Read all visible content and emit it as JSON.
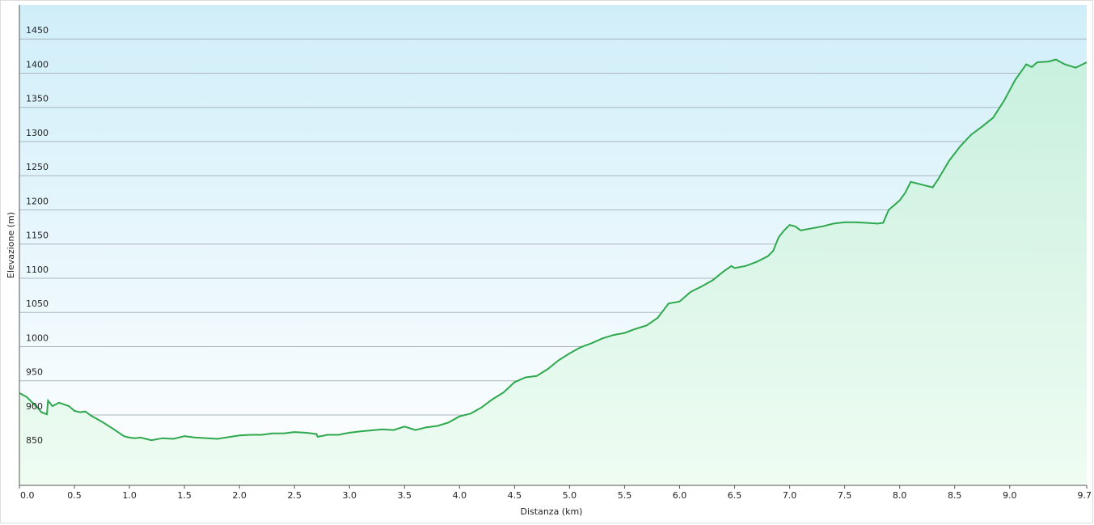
{
  "chart_data": {
    "type": "area",
    "x_label": "Distanza  (km)",
    "y_label": "Elevazione (m)",
    "color": "#2ea84d",
    "x": [
      0.0,
      0.07,
      0.13,
      0.17,
      0.2,
      0.25,
      0.26,
      0.3,
      0.36,
      0.45,
      0.5,
      0.55,
      0.6,
      0.65,
      0.75,
      0.85,
      0.95,
      1.0,
      1.05,
      1.1,
      1.2,
      1.3,
      1.4,
      1.5,
      1.6,
      1.8,
      2.0,
      2.1,
      2.2,
      2.3,
      2.4,
      2.5,
      2.6,
      2.7,
      2.71,
      2.8,
      2.9,
      3.0,
      3.1,
      3.3,
      3.4,
      3.5,
      3.6,
      3.7,
      3.8,
      3.9,
      4.0,
      4.1,
      4.2,
      4.3,
      4.4,
      4.5,
      4.6,
      4.7,
      4.8,
      4.9,
      5.0,
      5.1,
      5.2,
      5.3,
      5.4,
      5.5,
      5.6,
      5.7,
      5.8,
      5.9,
      6.0,
      6.1,
      6.2,
      6.3,
      6.4,
      6.47,
      6.5,
      6.6,
      6.7,
      6.8,
      6.85,
      6.9,
      6.95,
      7.0,
      7.05,
      7.1,
      7.2,
      7.3,
      7.4,
      7.5,
      7.6,
      7.7,
      7.8,
      7.85,
      7.9,
      8.0,
      8.05,
      8.1,
      8.2,
      8.3,
      8.35,
      8.45,
      8.55,
      8.65,
      8.75,
      8.85,
      8.95,
      9.05,
      9.15,
      9.2,
      9.25,
      9.35,
      9.42,
      9.5,
      9.6,
      9.7
    ],
    "values": [
      932,
      926,
      916,
      910,
      904,
      901,
      921,
      913,
      918,
      913,
      906,
      904,
      905,
      899,
      890,
      880,
      869,
      867,
      866,
      867,
      863,
      866,
      865,
      869,
      867,
      865,
      870,
      871,
      871,
      873,
      873,
      875,
      874,
      872,
      868,
      871,
      871,
      874,
      876,
      879,
      878,
      883,
      878,
      882,
      884,
      889,
      898,
      902,
      911,
      923,
      933,
      948,
      955,
      957,
      967,
      980,
      990,
      999,
      1005,
      1012,
      1017,
      1020,
      1026,
      1031,
      1042,
      1063,
      1066,
      1080,
      1088,
      1097,
      1110,
      1118,
      1115,
      1118,
      1124,
      1132,
      1140,
      1160,
      1170,
      1178,
      1176,
      1170,
      1173,
      1176,
      1180,
      1182,
      1182,
      1181,
      1180,
      1181,
      1200,
      1214,
      1225,
      1241,
      1237,
      1233,
      1245,
      1272,
      1293,
      1310,
      1322,
      1335,
      1360,
      1390,
      1413,
      1409,
      1416,
      1417,
      1420,
      1413,
      1408,
      1416
    ],
    "xlim": [
      0,
      9.7
    ],
    "ylim": [
      797,
      1500
    ],
    "xticks": [
      {
        "value": 0,
        "label": "0.0"
      },
      0.5,
      {
        "value": 1,
        "label": "1.0"
      },
      1.5,
      {
        "value": 2,
        "label": "2.0"
      },
      2.5,
      {
        "value": 3,
        "label": "3.0"
      },
      3.5,
      {
        "value": 4,
        "label": "4.0"
      },
      4.5,
      {
        "value": 5,
        "label": "5.0"
      },
      5.5,
      {
        "value": 6,
        "label": "6.0"
      },
      6.5,
      {
        "value": 7,
        "label": "7.0"
      },
      7.5,
      {
        "value": 8,
        "label": "8.0"
      },
      8.5,
      {
        "value": 9,
        "label": "9.0"
      },
      9.7
    ],
    "yticks": [
      850,
      900,
      950,
      1000,
      1050,
      1100,
      1150,
      1200,
      1250,
      1300,
      1350,
      1400,
      1450
    ],
    "grid": true
  }
}
